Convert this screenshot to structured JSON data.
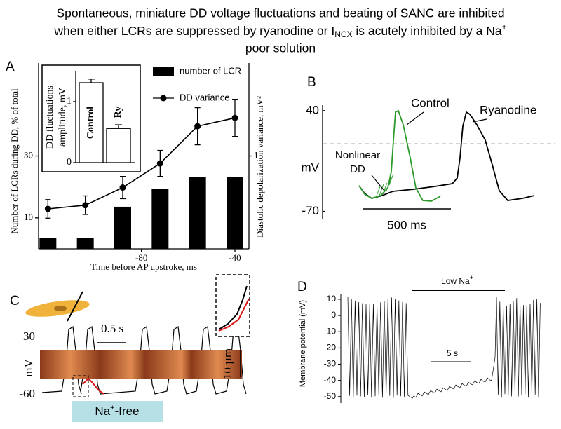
{
  "title_parts": [
    "Spontaneous, miniature DD voltage fluctuations and beating of SANC are inhibited",
    "when either LCRs are suppressed by ryanodine or I",
    "NCX",
    " is acutely inhibited by a Na",
    "+",
    "poor solution"
  ],
  "chart_data": [
    {
      "type": "combo",
      "panel_label": "A",
      "xlabel": "Time before AP upstroke, ms",
      "ylabel": "Number of LCRs during DD, % of total",
      "y2label": "Diastolic depolarization variance, mV²",
      "xlim": [
        -124,
        -34
      ],
      "xticks": [
        -80,
        -40
      ],
      "ylim": [
        0,
        60
      ],
      "yticks": [
        10,
        30
      ],
      "y2lim": [
        0,
        2
      ],
      "y2ticks": [
        1
      ],
      "series": [
        {
          "name": "number of LCR",
          "type": "bar",
          "color": "#000000",
          "x": [
            -120,
            -104,
            -88,
            -72,
            -56,
            -40
          ],
          "values": [
            3.6,
            3.6,
            13.6,
            19.3,
            23.2,
            23.2
          ]
        },
        {
          "name": "DD variance",
          "type": "line",
          "axis": "y2",
          "color": "#000000",
          "x": [
            -120,
            -104,
            -88,
            -72,
            -56,
            -40
          ],
          "values": [
            0.43,
            0.47,
            0.66,
            0.92,
            1.32,
            1.41
          ],
          "errors": [
            0.1,
            0.1,
            0.12,
            0.14,
            0.2,
            0.2
          ]
        }
      ]
    },
    {
      "type": "bar",
      "ylabel": [
        "DD fluctuations",
        "amplitude, mV"
      ],
      "categories": [
        "Control",
        "Ry"
      ],
      "values": [
        1.31,
        0.56
      ],
      "errors": [
        0.06,
        0.06
      ],
      "ylim": [
        0,
        1.5
      ],
      "yticks": [
        0,
        1
      ],
      "color": "#ffffff"
    },
    {
      "type": "trace",
      "panel_label": "B",
      "ylabel": "mV",
      "ylim": [
        -78,
        46
      ],
      "yticks": [
        40,
        -70
      ],
      "scale_bar": "500 ms",
      "series": [
        {
          "name": "Control",
          "color": "#2a9a2a"
        },
        {
          "name": "Ryanodine",
          "color": "#000000"
        }
      ],
      "annotation": [
        "Nonlinear",
        "DD"
      ]
    },
    {
      "type": "trace",
      "panel_label": "C",
      "ylabel": "mV",
      "ylim": [
        -73,
        42
      ],
      "yticks": [
        30,
        -60
      ],
      "scale_bars": [
        "0.5 s",
        "10 µm"
      ],
      "condition": [
        "Na",
        "+",
        "-free"
      ]
    },
    {
      "type": "trace",
      "panel_label": "D",
      "ylabel": "Membrane potential (mV)",
      "ylim": [
        -54,
        13
      ],
      "yticks": [
        10,
        0,
        -10,
        -20,
        -30,
        -40,
        -50
      ],
      "scale_bar": "5 s",
      "condition": [
        "Low Na",
        "+"
      ]
    }
  ]
}
